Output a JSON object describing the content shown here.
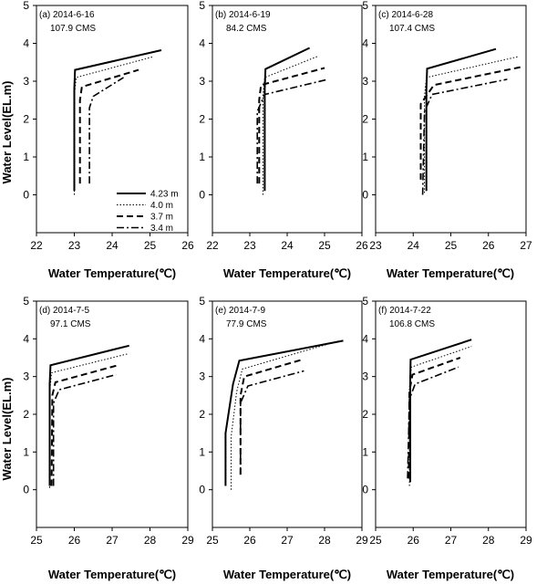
{
  "figure": {
    "xlabel": "Water Temperature(℃)",
    "ylabel": "Water Level(EL.m)"
  },
  "legend": [
    {
      "label": "4.23 m",
      "dash": "solid"
    },
    {
      "label": "4.0 m",
      "dash": "dotted"
    },
    {
      "label": "3.7 m",
      "dash": "dashed"
    },
    {
      "label": "3.4 m",
      "dash": "dashdot"
    }
  ],
  "chart_data": [
    {
      "type": "line",
      "panel": "a",
      "title": "(a) 2014-6-16",
      "subtitle": "107.9 CMS",
      "xlim": [
        22,
        26
      ],
      "xticks": [
        22,
        23,
        24,
        25,
        26
      ],
      "ylim": [
        -1,
        5
      ],
      "yticks": [
        0,
        1,
        2,
        3,
        4,
        5
      ],
      "series": [
        {
          "name": "4.23 m",
          "points": [
            [
              23.0,
              0.1
            ],
            [
              23.0,
              2.8
            ],
            [
              23.02,
              3.3
            ],
            [
              25.3,
              3.82
            ]
          ]
        },
        {
          "name": "4.0 m",
          "points": [
            [
              23.0,
              0.0
            ],
            [
              23.0,
              2.6
            ],
            [
              23.05,
              3.1
            ],
            [
              25.1,
              3.65
            ]
          ]
        },
        {
          "name": "3.7 m",
          "points": [
            [
              23.15,
              0.3
            ],
            [
              23.15,
              2.5
            ],
            [
              23.2,
              2.85
            ],
            [
              24.7,
              3.3
            ]
          ]
        },
        {
          "name": "3.4 m",
          "points": [
            [
              23.4,
              0.3
            ],
            [
              23.4,
              2.3
            ],
            [
              23.5,
              2.6
            ],
            [
              24.3,
              3.1
            ]
          ]
        }
      ]
    },
    {
      "type": "line",
      "panel": "b",
      "title": "(b) 2014-6-19",
      "subtitle": "84.2 CMS",
      "xlim": [
        22,
        26
      ],
      "xticks": [
        22,
        23,
        24,
        25,
        26
      ],
      "ylim": [
        -1,
        5
      ],
      "yticks": [
        0,
        1,
        2,
        3,
        4,
        5
      ],
      "series": [
        {
          "name": "4.23 m",
          "points": [
            [
              23.4,
              0.1
            ],
            [
              23.4,
              2.8
            ],
            [
              23.42,
              3.32
            ],
            [
              24.6,
              3.88
            ]
          ]
        },
        {
          "name": "4.0 m",
          "points": [
            [
              23.35,
              0.0
            ],
            [
              23.35,
              2.6
            ],
            [
              23.4,
              3.1
            ],
            [
              24.8,
              3.65
            ]
          ]
        },
        {
          "name": "3.7 m",
          "points": [
            [
              23.25,
              0.3
            ],
            [
              23.25,
              2.5
            ],
            [
              23.3,
              2.9
            ],
            [
              25.0,
              3.35
            ]
          ]
        },
        {
          "name": "3.4 m",
          "points": [
            [
              23.2,
              0.3
            ],
            [
              23.2,
              2.2
            ],
            [
              23.4,
              2.65
            ],
            [
              25.1,
              3.05
            ]
          ]
        }
      ]
    },
    {
      "type": "line",
      "panel": "c",
      "title": "(c) 2014-6-28",
      "subtitle": "107.4 CMS",
      "xlim": [
        23,
        27
      ],
      "xticks": [
        23,
        24,
        25,
        26,
        27
      ],
      "ylim": [
        -1,
        5
      ],
      "yticks": [
        0,
        1,
        2,
        3,
        4,
        5
      ],
      "series": [
        {
          "name": "4.23 m",
          "points": [
            [
              24.35,
              0.1
            ],
            [
              24.35,
              2.8
            ],
            [
              24.37,
              3.33
            ],
            [
              26.2,
              3.85
            ]
          ]
        },
        {
          "name": "4.0 m",
          "points": [
            [
              24.3,
              0.05
            ],
            [
              24.3,
              2.6
            ],
            [
              24.35,
              3.1
            ],
            [
              26.8,
              3.65
            ]
          ]
        },
        {
          "name": "3.7 m",
          "points": [
            [
              24.2,
              0.4
            ],
            [
              24.2,
              2.4
            ],
            [
              24.55,
              2.9
            ],
            [
              26.9,
              3.38
            ]
          ]
        },
        {
          "name": "3.4 m",
          "points": [
            [
              24.25,
              0.0
            ],
            [
              24.3,
              2.2
            ],
            [
              24.5,
              2.65
            ],
            [
              26.5,
              3.05
            ]
          ]
        }
      ]
    },
    {
      "type": "line",
      "panel": "d",
      "title": "(d) 2014-7-5",
      "subtitle": "97.1 CMS",
      "xlim": [
        25,
        29
      ],
      "xticks": [
        25,
        26,
        27,
        28,
        29
      ],
      "ylim": [
        -1,
        5
      ],
      "yticks": [
        0,
        1,
        2,
        3,
        4,
        5
      ],
      "series": [
        {
          "name": "4.23 m",
          "points": [
            [
              25.35,
              0.1
            ],
            [
              25.35,
              2.8
            ],
            [
              25.37,
              3.3
            ],
            [
              27.45,
              3.82
            ]
          ]
        },
        {
          "name": "4.0 m",
          "points": [
            [
              25.35,
              0.05
            ],
            [
              25.35,
              2.6
            ],
            [
              25.4,
              3.1
            ],
            [
              27.4,
              3.6
            ]
          ]
        },
        {
          "name": "3.7 m",
          "points": [
            [
              25.4,
              0.1
            ],
            [
              25.42,
              2.5
            ],
            [
              25.5,
              2.85
            ],
            [
              27.15,
              3.3
            ]
          ]
        },
        {
          "name": "3.4 m",
          "points": [
            [
              25.45,
              0.1
            ],
            [
              25.45,
              2.3
            ],
            [
              25.6,
              2.65
            ],
            [
              27.1,
              3.05
            ]
          ]
        }
      ]
    },
    {
      "type": "line",
      "panel": "e",
      "title": "(e) 2014-7-9",
      "subtitle": "77.9 CMS",
      "xlim": [
        25,
        29
      ],
      "xticks": [
        25,
        26,
        27,
        28,
        29
      ],
      "ylim": [
        -1,
        5
      ],
      "yticks": [
        0,
        1,
        2,
        3,
        4,
        5
      ],
      "series": [
        {
          "name": "4.23 m",
          "points": [
            [
              25.35,
              0.1
            ],
            [
              25.35,
              1.5
            ],
            [
              25.55,
              2.8
            ],
            [
              25.72,
              3.42
            ],
            [
              28.5,
              3.95
            ]
          ]
        },
        {
          "name": "4.0 m",
          "points": [
            [
              25.5,
              0.0
            ],
            [
              25.5,
              1.4
            ],
            [
              25.65,
              2.6
            ],
            [
              25.8,
              3.2
            ],
            [
              28.4,
              3.95
            ]
          ]
        },
        {
          "name": "3.7 m",
          "points": [
            [
              25.75,
              0.4
            ],
            [
              25.75,
              2.5
            ],
            [
              25.85,
              3.0
            ],
            [
              27.4,
              3.45
            ]
          ]
        },
        {
          "name": "3.4 m",
          "points": [
            [
              25.75,
              0.4
            ],
            [
              25.75,
              2.3
            ],
            [
              25.95,
              2.75
            ],
            [
              27.45,
              3.15
            ]
          ]
        }
      ]
    },
    {
      "type": "line",
      "panel": "f",
      "title": "(f) 2014-7-22",
      "subtitle": "106.8 CMS",
      "xlim": [
        25,
        29
      ],
      "xticks": [
        25,
        26,
        27,
        28,
        29
      ],
      "ylim": [
        -1,
        5
      ],
      "yticks": [
        0,
        1,
        2,
        3,
        4,
        5
      ],
      "series": [
        {
          "name": "4.23 m",
          "points": [
            [
              25.92,
              0.2
            ],
            [
              25.92,
              2.9
            ],
            [
              25.93,
              3.45
            ],
            [
              27.55,
              3.98
            ]
          ]
        },
        {
          "name": "4.0 m",
          "points": [
            [
              25.9,
              0.1
            ],
            [
              25.9,
              2.7
            ],
            [
              25.95,
              3.25
            ],
            [
              27.55,
              3.8
            ]
          ]
        },
        {
          "name": "3.7 m",
          "points": [
            [
              25.88,
              0.3
            ],
            [
              25.9,
              2.6
            ],
            [
              25.98,
              3.05
            ],
            [
              27.25,
              3.5
            ]
          ]
        },
        {
          "name": "3.4 m",
          "points": [
            [
              25.85,
              0.3
            ],
            [
              25.9,
              2.4
            ],
            [
              26.05,
              2.8
            ],
            [
              27.2,
              3.25
            ]
          ]
        }
      ]
    }
  ]
}
